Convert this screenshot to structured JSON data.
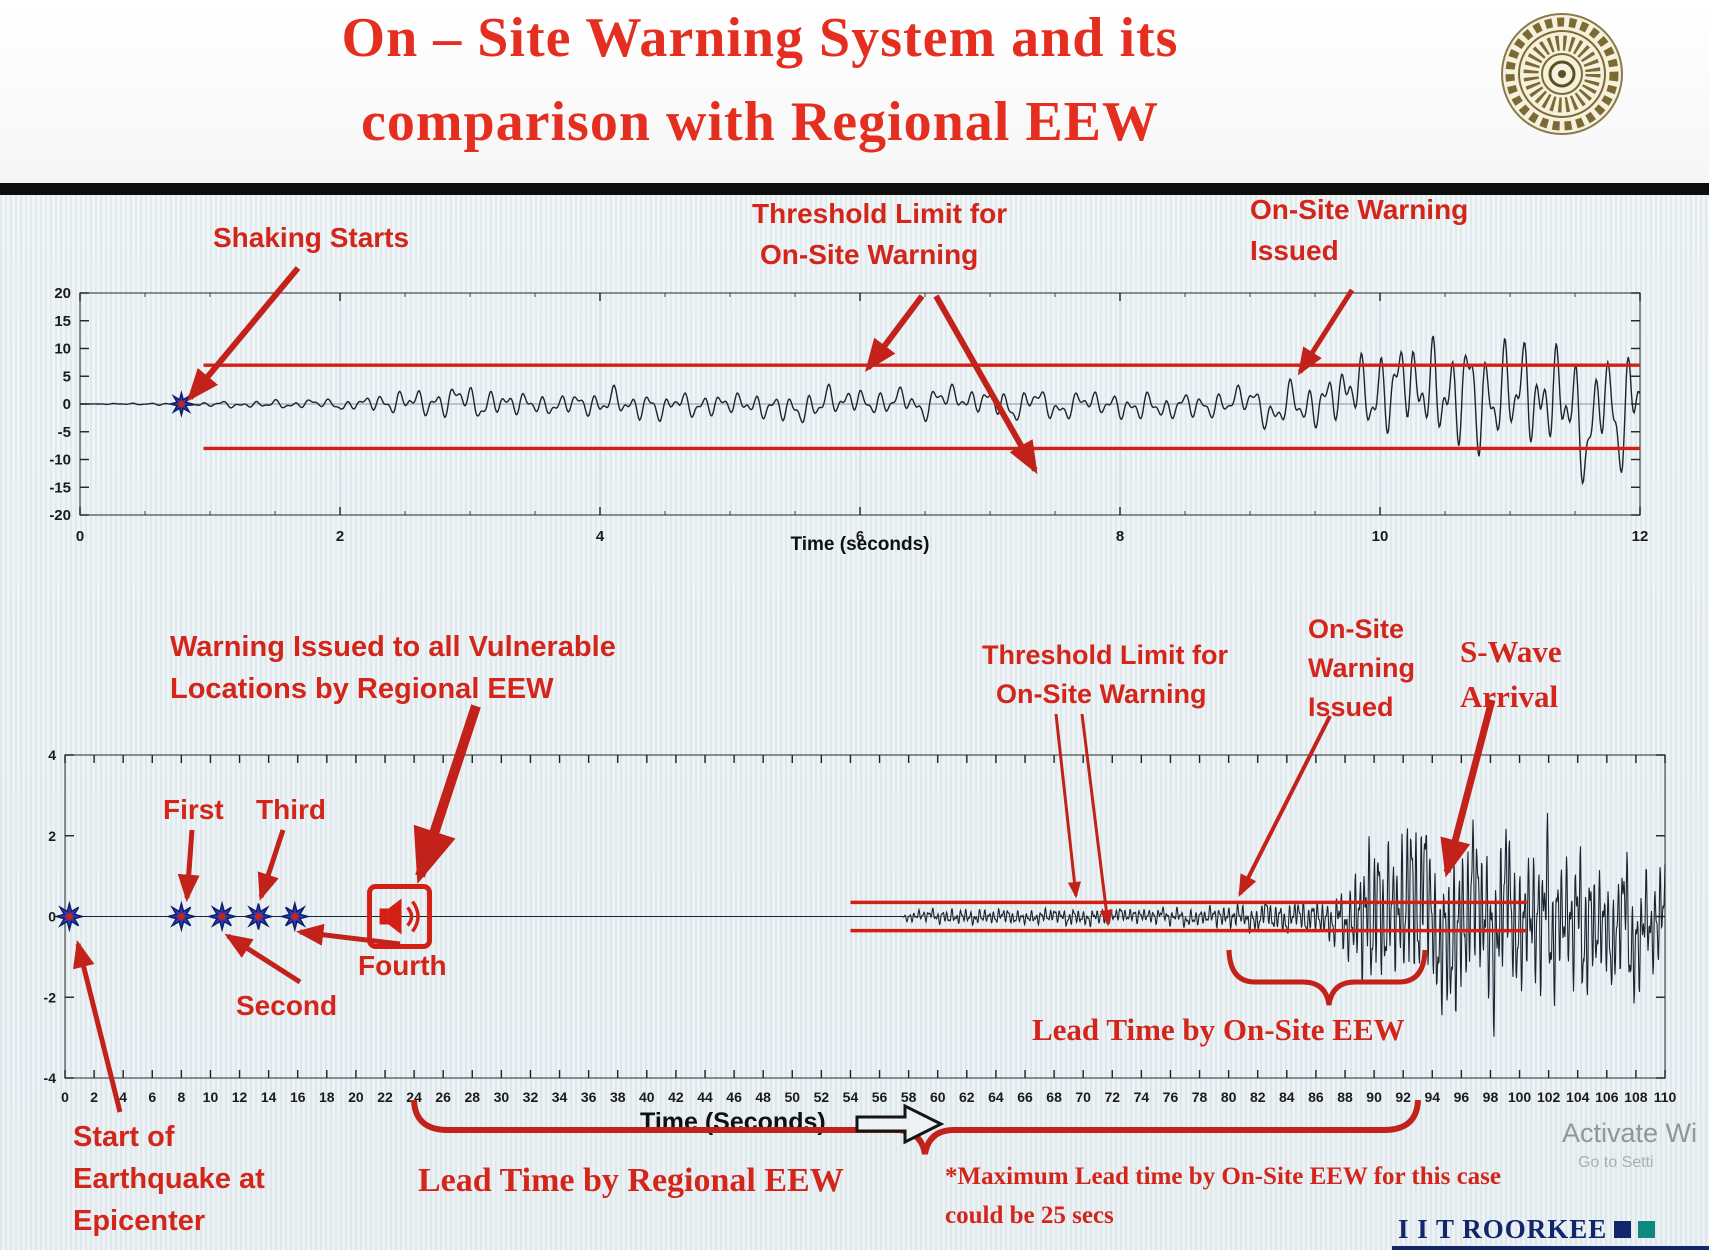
{
  "slide": {
    "title_line1": "On – Site Warning System and its",
    "title_line2": "comparison with Regional EEW",
    "footer_brand": "I I T ROORKEE",
    "watermark_line1": "Activate Wi",
    "watermark_line2": "Go to Setti"
  },
  "colors": {
    "title_red": "#e42f20",
    "annotation_red": "#d3251a",
    "threshold_red": "#d42014",
    "arrow_red": "#c2221a",
    "waveform_dark": "#1b2530",
    "star_blue": "#2b3cae",
    "brand_navy": "#12276b",
    "brand_teal": "#0d8a80"
  },
  "annotations": {
    "shaking_starts": "Shaking Starts",
    "threshold_top_1": "Threshold Limit for",
    "threshold_top_2": "On-Site Warning",
    "onsite_issued_top_1": "On-Site Warning",
    "onsite_issued_top_2": "Issued",
    "regional_warning_1": "Warning Issued to all Vulnerable",
    "regional_warning_2": "Locations by Regional EEW",
    "first": "First",
    "second": "Second",
    "third": "Third",
    "fourth": "Fourth",
    "threshold_bottom_1": "Threshold Limit for",
    "threshold_bottom_2": "On-Site Warning",
    "onsite_issued_bottom_1": "On-Site",
    "onsite_issued_bottom_2": "Warning",
    "onsite_issued_bottom_3": "Issued",
    "s_wave_1": "S-Wave",
    "s_wave_2": "Arrival",
    "lead_onsite": "Lead Time by On-Site EEW",
    "lead_regional": "Lead Time by Regional EEW",
    "max_lead_1": "*Maximum Lead time by On-Site EEW for this case",
    "max_lead_2": "could be 25 secs",
    "start_eq_1": "Start of",
    "start_eq_2": "Earthquake at",
    "start_eq_3": "Epicenter"
  },
  "chart_data": [
    {
      "id": "top",
      "type": "line",
      "series_name": "on-site-station-acceleration-trace",
      "xlabel": "Time (seconds)",
      "xlim": [
        0,
        12
      ],
      "xticks": [
        0,
        2,
        4,
        6,
        8,
        10,
        12
      ],
      "minor_step": 0.5,
      "grid": true,
      "ylim": [
        -20,
        20
      ],
      "yticks": [
        20,
        15,
        10,
        5,
        0,
        -5,
        -10,
        -15,
        -20
      ],
      "threshold": {
        "upper": 7,
        "lower": -8,
        "x0": 0.95,
        "x1": 12
      },
      "shaking_start_t": 0.78,
      "envelope": [
        [
          0,
          0
        ],
        [
          0.78,
          0.4
        ],
        [
          1.2,
          0.9
        ],
        [
          2.0,
          1.2
        ],
        [
          2.4,
          3.2
        ],
        [
          3.0,
          4.2
        ],
        [
          3.6,
          3.0
        ],
        [
          4.2,
          3.6
        ],
        [
          5.0,
          3.2
        ],
        [
          5.6,
          4.0
        ],
        [
          6.2,
          3.4
        ],
        [
          7.0,
          3.8
        ],
        [
          7.6,
          3.2
        ],
        [
          8.2,
          3.8
        ],
        [
          8.8,
          3.2
        ],
        [
          9.3,
          5.5
        ],
        [
          9.7,
          9.0
        ],
        [
          10.1,
          13.0
        ],
        [
          10.5,
          16.0
        ],
        [
          10.9,
          13.5
        ],
        [
          11.3,
          17.0
        ],
        [
          11.7,
          14.0
        ],
        [
          12,
          15.5
        ]
      ],
      "osc": {
        "f1": 7.3,
        "f2": 12.7,
        "noise_rate": 30
      },
      "seed": 42,
      "samples": 1600
    },
    {
      "id": "bottom",
      "type": "line",
      "series_name": "regional-station-acceleration-trace",
      "xlabel": "Time (Seconds)",
      "xlim": [
        0,
        110
      ],
      "xticks": [
        0,
        2,
        4,
        6,
        8,
        10,
        12,
        14,
        16,
        18,
        20,
        22,
        24,
        26,
        28,
        30,
        32,
        34,
        36,
        38,
        40,
        42,
        44,
        46,
        48,
        50,
        52,
        54,
        56,
        58,
        60,
        62,
        64,
        66,
        68,
        70,
        72,
        74,
        76,
        78,
        80,
        82,
        84,
        86,
        88,
        90,
        92,
        94,
        96,
        98,
        100,
        102,
        104,
        106,
        108,
        110
      ],
      "grid": false,
      "ylim": [
        -4,
        4
      ],
      "yticks": [
        4,
        2,
        0,
        -2,
        -4
      ],
      "threshold": {
        "upper": 0.35,
        "lower": -0.35,
        "x0": 54,
        "x1": 100.5
      },
      "p_wave_markers": [
        {
          "t": 0.3,
          "label": "Start of Earthquake at Epicenter"
        },
        {
          "t": 8.0,
          "label": "First"
        },
        {
          "t": 10.8,
          "label": "Second"
        },
        {
          "t": 13.3,
          "label": "Third"
        },
        {
          "t": 15.8,
          "label": "Fourth"
        }
      ],
      "regional_warning_icon_t": 23,
      "onsite_warning_issued_t": 80,
      "s_wave_arrival_t": 88.5,
      "lead_time_regional_span": [
        24,
        93
      ],
      "lead_time_onsite_span": [
        80,
        93.5
      ],
      "max_lead_note": "*Maximum Lead time by On-Site EEW for this case could be 25 secs",
      "envelope": [
        [
          0,
          0
        ],
        [
          57.5,
          0
        ],
        [
          58,
          0.18
        ],
        [
          62,
          0.28
        ],
        [
          66,
          0.24
        ],
        [
          70,
          0.3
        ],
        [
          74,
          0.26
        ],
        [
          78,
          0.3
        ],
        [
          80,
          0.42
        ],
        [
          83,
          0.5
        ],
        [
          86,
          0.6
        ],
        [
          87.5,
          0.9
        ],
        [
          88.5,
          1.6
        ],
        [
          89.5,
          2.9
        ],
        [
          91,
          2.3
        ],
        [
          92.5,
          3.2
        ],
        [
          94,
          2.6
        ],
        [
          95.5,
          3.3
        ],
        [
          97,
          2.7
        ],
        [
          98.5,
          3.1
        ],
        [
          100,
          2.4
        ],
        [
          101.5,
          2.9
        ],
        [
          103,
          2.2
        ],
        [
          104.5,
          2.6
        ],
        [
          106,
          1.9
        ],
        [
          107.5,
          2.3
        ],
        [
          109,
          1.7
        ],
        [
          110,
          2.0
        ]
      ],
      "osc": {
        "f1": 3.1,
        "f2": 5.3,
        "noise_rate": 10
      },
      "seed": 1337,
      "samples": 3200
    }
  ]
}
